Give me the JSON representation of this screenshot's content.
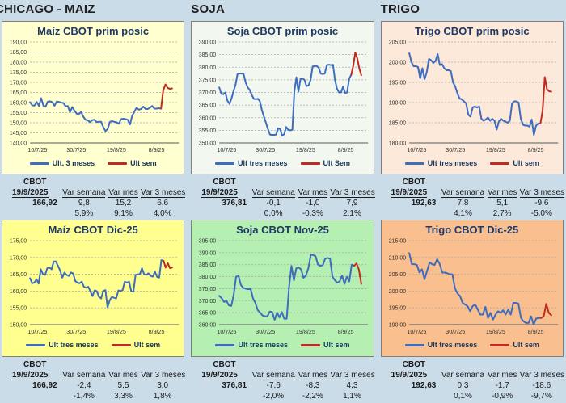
{
  "page_bg": "#cbdce9",
  "sections": [
    {
      "label": "CHICAGO - MAIZ"
    },
    {
      "label": "SOJA"
    },
    {
      "label": "TRIGO"
    }
  ],
  "colors": {
    "blue_line": "#3e6cbf",
    "red_line": "#bf2b20",
    "title_text": "#1f3864",
    "grid": "#a6a6a6",
    "axis": "#595959"
  },
  "table_labels": {
    "cbot": "CBOT",
    "var_semana": "Var semana",
    "var_mes": "Var mes",
    "var_3_meses": "Var 3 meses"
  },
  "tables": [
    {
      "date": "19/9/2025",
      "value": "166,92",
      "vars": [
        "9,8",
        "15,2",
        "6,6"
      ],
      "pcts": [
        "5,9%",
        "9,1%",
        "4,0%"
      ]
    },
    {
      "date": "19/9/2025",
      "value": "376,81",
      "vars": [
        "-0,1",
        "-1,0",
        "7,9"
      ],
      "pcts": [
        "0,0%",
        "-0,3%",
        "2,1%"
      ]
    },
    {
      "date": "19/9/2025",
      "value": "192,63",
      "vars": [
        "7,8",
        "5,1",
        "-9,6"
      ],
      "pcts": [
        "4,1%",
        "2,7%",
        "-5,0%"
      ]
    },
    {
      "date": "19/9/2025",
      "value": "166,92",
      "vars": [
        "-2,4",
        "5,5",
        "3,0"
      ],
      "pcts": [
        "-1,4%",
        "3,3%",
        "1,8%"
      ]
    },
    {
      "date": "19/9/2025",
      "value": "376,81",
      "vars": [
        "-7,6",
        "-8,3",
        "4,3"
      ],
      "pcts": [
        "-2,0%",
        "-2,2%",
        "1,1%"
      ]
    },
    {
      "date": "19/9/2025",
      "value": "192,63",
      "vars": [
        "0,3",
        "-1,7",
        "-18,6"
      ],
      "pcts": [
        "0,1%",
        "-0,9%",
        "-9,7%"
      ]
    }
  ],
  "chart_data": [
    {
      "type": "line",
      "title": "Maíz CBOT prim posic",
      "bg": "#ffffd0",
      "ylim": [
        140,
        190
      ],
      "ystep": 5,
      "xticks": [
        "10/7/25",
        "30/7/25",
        "19/8/25",
        "8/9/25"
      ],
      "legend": [
        "Ult. 3 meses",
        "Ult sem"
      ],
      "grid": true,
      "legend_position": "bottom",
      "series": [
        {
          "name": "Ult. 3 meses",
          "color": "#3e6cbf",
          "values": [
            160.2,
            158.6,
            158.5,
            160.3,
            158.3,
            162.2,
            158.5,
            158.0,
            160.5,
            160.6,
            160.2,
            158.4,
            160.5,
            160.3,
            160.0,
            159.8,
            158.2,
            158.3,
            155.2,
            157.8,
            156.0,
            154.5,
            154.3,
            155.3,
            153.0,
            151.5,
            151.2,
            150.3,
            151.3,
            151.5,
            150.3,
            150.5,
            150.5,
            147.8,
            145.8,
            147.0,
            150.5,
            150.8,
            150.5,
            150.2,
            149.5,
            151.8,
            152.0,
            151.8,
            151.5,
            149.2,
            153.5,
            155.5,
            157.5,
            156.5,
            156.8,
            158.0,
            156.8,
            156.8,
            157.5,
            158.3,
            157.0,
            157.0,
            157.2,
            157.0
          ]
        },
        {
          "name": "Ult sem",
          "color": "#bf2b20",
          "values": [
            157.0,
            166.0,
            169.0,
            167.2,
            166.8,
            167.0
          ]
        }
      ]
    },
    {
      "type": "line",
      "title": "Soja CBOT prim posic",
      "bg": "#f2f8ef",
      "ylim": [
        350,
        390
      ],
      "ystep": 5,
      "xticks": [
        "10/7/25",
        "30/7/25",
        "19/8/25",
        "8/9/25"
      ],
      "legend": [
        "Ult tres meses",
        "Ult Sem"
      ],
      "grid": true,
      "legend_position": "bottom",
      "series": [
        {
          "name": "Ult tres meses",
          "color": "#3e6cbf",
          "values": [
            372.0,
            369.5,
            369.3,
            370.0,
            366.8,
            365.5,
            367.5,
            370.5,
            373.0,
            377.3,
            377.5,
            377.5,
            377.3,
            374.0,
            372.0,
            371.0,
            369.0,
            367.5,
            367.3,
            367.5,
            366.5,
            363.0,
            360.5,
            358.0,
            355.5,
            353.3,
            353.2,
            353.2,
            353.3,
            355.8,
            355.5,
            352.8,
            353.5,
            356.3,
            355.2,
            355.0,
            355.2,
            370.5,
            376.0,
            370.3,
            375.3,
            375.5,
            375.0,
            372.5,
            372.8,
            375.0,
            380.3,
            380.5,
            380.5,
            379.8,
            377.5,
            377.3,
            377.5,
            380.8,
            381.0,
            380.8,
            381.0,
            375.0,
            371.5,
            370.0,
            370.0,
            372.3,
            369.8,
            370.0,
            375.5,
            377.0
          ]
        },
        {
          "name": "Ult Sem",
          "color": "#bf2b20",
          "values": [
            377.0,
            380.5,
            385.8,
            383.5,
            379.5,
            376.8
          ]
        }
      ]
    },
    {
      "type": "line",
      "title": "Trigo CBOT prim posic",
      "bg": "#fce9d9",
      "ylim": [
        180,
        205
      ],
      "ystep": 5,
      "xticks": [
        "10/7/25",
        "30/7/25",
        "19/8/25",
        "8/9/25"
      ],
      "legend": [
        "Ult tres meses",
        "Ult sem"
      ],
      "grid": true,
      "legend_position": "bottom",
      "series": [
        {
          "name": "Ult tres meses",
          "color": "#3e6cbf",
          "values": [
            202.2,
            200.0,
            199.0,
            199.0,
            198.8,
            196.0,
            198.5,
            195.8,
            197.5,
            200.8,
            200.5,
            199.8,
            200.3,
            202.0,
            199.3,
            199.5,
            198.5,
            198.0,
            198.0,
            197.8,
            195.0,
            194.0,
            192.3,
            191.0,
            190.8,
            190.3,
            189.8,
            187.0,
            186.5,
            188.8,
            189.0,
            188.8,
            189.0,
            186.0,
            185.5,
            185.8,
            186.3,
            185.5,
            186.0,
            185.5,
            183.3,
            185.3,
            186.0,
            185.5,
            185.3,
            185.0,
            185.5,
            189.8,
            190.3,
            190.3,
            190.0,
            186.0,
            184.5,
            184.3,
            184.3,
            184.0,
            185.8,
            182.0,
            184.3,
            184.8,
            184.8
          ]
        },
        {
          "name": "Ult sem",
          "color": "#bf2b20",
          "values": [
            184.8,
            188.0,
            196.3,
            193.3,
            192.8,
            192.7
          ]
        }
      ]
    },
    {
      "type": "line",
      "title": "Maíz CBOT Dic-25",
      "bg": "#ffff8f",
      "ylim": [
        150,
        175
      ],
      "ystep": 5,
      "xticks": [
        "10/7/25",
        "30/7/25",
        "19/8/25",
        "8/9/25"
      ],
      "legend": [
        "Ult tres meses",
        "Ult sem"
      ],
      "grid": true,
      "legend_position": "bottom",
      "series": [
        {
          "name": "Ult tres meses",
          "color": "#3e6cbf",
          "values": [
            163.8,
            162.3,
            162.5,
            163.5,
            162.2,
            166.5,
            165.0,
            164.8,
            166.8,
            167.0,
            166.5,
            168.8,
            168.8,
            167.5,
            166.0,
            164.0,
            165.5,
            164.8,
            164.5,
            165.5,
            165.3,
            163.0,
            162.5,
            162.3,
            162.8,
            161.3,
            161.0,
            161.3,
            160.0,
            158.5,
            160.2,
            160.0,
            158.3,
            157.8,
            160.0,
            160.3,
            155.2,
            157.2,
            158.3,
            158.0,
            157.8,
            160.2,
            160.0,
            160.3,
            162.8,
            162.5,
            162.8,
            160.0,
            159.8,
            164.8,
            165.0,
            165.0,
            166.8,
            165.0,
            164.8,
            165.3,
            164.5,
            164.3,
            165.8,
            164.2,
            164.0,
            169.2,
            169.0
          ]
        },
        {
          "name": "Ult sem",
          "color": "#bf2b20",
          "values": [
            169.0,
            167.0,
            168.3,
            166.8,
            167.0
          ]
        }
      ]
    },
    {
      "type": "line",
      "title": "Soja CBOT Nov-25",
      "bg": "#b5efb2",
      "ylim": [
        360,
        395
      ],
      "ystep": 5,
      "xticks": [
        "10/7/25",
        "30/7/25",
        "19/8/25",
        "8/9/25"
      ],
      "legend": [
        "Ult tres meses",
        "Ult sem"
      ],
      "grid": true,
      "legend_position": "bottom",
      "series": [
        {
          "name": "Ult tres meses",
          "color": "#3e6cbf",
          "values": [
            372.0,
            371.0,
            369.5,
            370.0,
            368.0,
            367.8,
            372.5,
            380.0,
            380.3,
            376.5,
            375.3,
            375.0,
            374.8,
            375.0,
            371.0,
            369.0,
            366.0,
            365.0,
            363.8,
            363.5,
            363.5,
            365.5,
            365.3,
            362.0,
            365.0,
            363.0,
            365.3,
            362.5,
            362.5,
            376.0,
            384.5,
            378.5,
            383.5,
            383.8,
            383.0,
            379.5,
            380.5,
            383.5,
            389.0,
            389.0,
            388.5,
            385.0,
            384.5,
            384.8,
            387.5,
            387.8,
            387.5,
            380.0,
            378.5,
            377.5,
            378.0,
            380.5,
            377.0,
            380.0,
            378.0,
            385.0,
            384.5
          ]
        },
        {
          "name": "Ult sem",
          "color": "#bf2b20",
          "values": [
            384.5,
            385.5,
            383.0,
            377.0
          ]
        }
      ]
    },
    {
      "type": "line",
      "title": "Trigo CBOT Dic-25",
      "bg": "#fabf8f",
      "ylim": [
        190,
        215
      ],
      "ystep": 5,
      "xticks": [
        "10/7/25",
        "30/7/25",
        "19/8/25",
        "8/9/25"
      ],
      "legend": [
        "Ult tres meses",
        "Ult sem"
      ],
      "grid": true,
      "legend_position": "bottom",
      "series": [
        {
          "name": "Ult tres meses",
          "color": "#3e6cbf",
          "values": [
            211.3,
            208.0,
            208.0,
            207.8,
            205.5,
            206.5,
            203.5,
            206.0,
            208.5,
            208.0,
            207.8,
            209.5,
            208.0,
            205.5,
            205.5,
            205.3,
            205.0,
            205.0,
            200.8,
            199.3,
            198.5,
            196.5,
            196.0,
            195.5,
            194.0,
            195.5,
            196.0,
            194.5,
            193.0,
            193.0,
            195.3,
            192.0,
            193.5,
            191.5,
            193.0,
            194.0,
            193.5,
            194.3,
            193.0,
            194.5,
            193.0,
            196.5,
            196.5,
            196.3,
            192.0,
            191.0,
            190.5,
            190.5,
            192.5,
            190.0,
            191.8,
            192.0,
            192.0
          ]
        },
        {
          "name": "Ult sem",
          "color": "#bf2b20",
          "values": [
            192.0,
            192.5,
            196.2,
            193.5,
            192.8
          ]
        }
      ]
    }
  ]
}
